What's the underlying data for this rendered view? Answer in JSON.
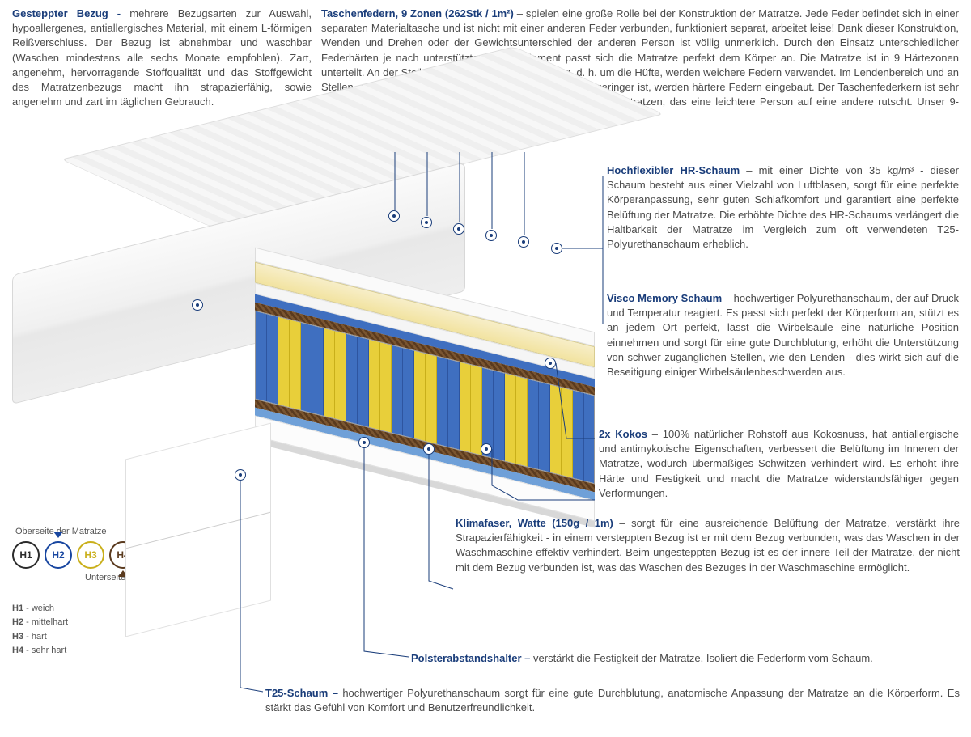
{
  "top": {
    "left": {
      "title": "Gesteppter Bezug -",
      "body": " mehrere Bezugsarten zur Auswahl, hypoallergenes, antiallergisches Material, mit einem L-förmigen Reißverschluss. Der Bezug ist abnehmbar und waschbar (Waschen mindestens alle sechs Monate empfohlen). Zart, angenehm, hervorragende Stoffqualität und das Stoffgewicht des Matratzenbezugs macht ihn strapazierfähig, sowie angenehm und zart im täglichen Gebrauch."
    },
    "right": {
      "title": "Taschenfedern, 9 Zonen (262Stk / 1m²)",
      "body": " – spielen eine große Rolle bei der Konstruktion der Matratze. Jede Feder befindet sich in einer separaten Materialtasche und ist nicht mit einer anderen Feder verbunden, funktioniert separat, arbeitet leise! Dank dieser Konstruktion, Wenden und Drehen oder der Gewichtsunterschied der anderen Person ist völlig unmerklich. Durch den Einsatz unterschiedlicher Federhärten je nach unterstütztem Körperelement passt sich die Matratze perfekt dem Körper an. Die Matratze ist in 9 Härtezonen unterteilt. An der Stelle mit der größten Unterstützung, d. h. um die Hüfte, werden weichere Federn verwendet. Im Lendenbereich und an Stellen, an denen der Druck des Körpers auf die Matratze geringer ist, werden härtere Federn eingebaut. Der Taschenfederkern ist sehr leise. Hier gibt es keinen Effekt, wie bei Bonell (Federkern)- Matratzen, das eine leichtere Person auf eine andere rutscht. Unser 9-Zonen-System garantiert eine gesunde und komfortable Erholung."
    }
  },
  "callouts": {
    "hr": {
      "title": "Hochflexibler HR-Schaum",
      "body": " – mit einer Dichte von 35 kg/m³ - dieser Schaum besteht aus einer Vielzahl von Luftblasen, sorgt für eine perfekte Körperanpassung, sehr guten Schlafkomfort und garantiert eine perfekte Belüftung der Matratze. Die erhöhte Dichte des HR-Schaums verlängert die Haltbarkeit der Matratze im Vergleich zum oft verwendeten T25-Polyurethanschaum erheblich."
    },
    "visco": {
      "title": "Visco Memory Schaum",
      "body": " – hochwertiger Polyurethanschaum, der auf Druck und Temperatur reagiert. Es passt sich perfekt der Körperform an, stützt es an jedem Ort perfekt, lässt die Wirbelsäule eine natürliche Position einnehmen und sorgt für eine gute Durchblutung, erhöht die Unterstützung von schwer zugänglichen Stellen, wie den Lenden - dies wirkt sich auf die Beseitigung einiger Wirbelsäulenbeschwerden aus."
    },
    "kokos": {
      "title": "2x Kokos",
      "body": " – 100% natürlicher Rohstoff aus Kokosnuss, hat antiallergische und antimykotische Eigenschaften, verbessert die Belüftung im Inneren der Matratze, wodurch übermäßiges Schwitzen verhindert wird. Es erhöht ihre Härte und Festigkeit und macht die Matratze widerstandsfähiger gegen Verformungen."
    },
    "klima": {
      "title": "Klimafaser, Watte (150g / 1m)",
      "body": " – sorgt für eine ausreichende Belüftung der Matratze, verstärkt ihre Strapazierfähigkeit - in einem versteppten Bezug ist er mit dem Bezug verbunden, was das Waschen in der Waschmaschine effektiv verhindert. Beim ungesteppten Bezug ist es der innere Teil der Matratze, der nicht mit dem Bezug verbunden ist, was das Waschen des Bezuges in der Waschmaschine ermöglicht."
    },
    "polster": {
      "title": "Polsterabstandshalter –",
      "body": " verstärkt die Festigkeit der Matratze. Isoliert die Federform vom Schaum."
    },
    "t25": {
      "title": "T25-Schaum –",
      "body": " hochwertiger Polyurethanschaum sorgt für eine gute Durchblutung, anatomische Anpassung der Matratze an die Körperform. Es stärkt das Gefühl von Komfort und Benutzerfreundlichkeit."
    }
  },
  "firmness": {
    "top_label": "Oberseite der Matratze",
    "bottom_label": "Unterseite der Matratze",
    "circles": [
      {
        "code": "H1",
        "color": "#2b2b2b"
      },
      {
        "code": "H2",
        "color": "#1846a0"
      },
      {
        "code": "H3",
        "color": "#c9af1a"
      },
      {
        "code": "H4",
        "color": "#5a3a1e"
      }
    ],
    "pointer_top_index": 1,
    "pointer_bottom_index": 3,
    "list": [
      {
        "code": "H1",
        "text": " - weich"
      },
      {
        "code": "H2",
        "text": " - mittelhart"
      },
      {
        "code": "H3",
        "text": " - hart"
      },
      {
        "code": "H4",
        "text": " - sehr hart"
      }
    ]
  },
  "colors": {
    "title": "#1a3d7a",
    "line": "#1a3d7a"
  }
}
